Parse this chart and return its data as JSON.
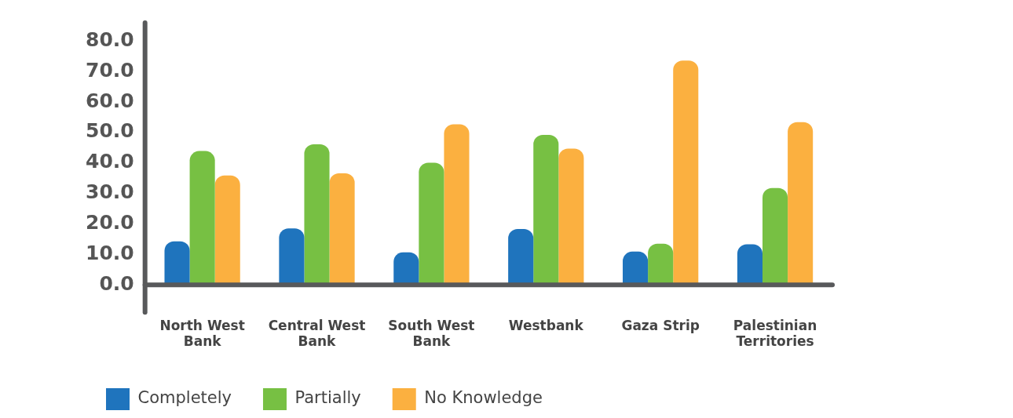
{
  "chart_data": {
    "type": "bar",
    "categories": [
      "North West Bank",
      "Central West Bank",
      "South West Bank",
      "Westbank",
      "Gaza Strip",
      "Palestinian Territories"
    ],
    "series": [
      {
        "name": "Completely",
        "color": "#1f74bd",
        "values": [
          14.3,
          18.5,
          10.7,
          18.3,
          10.9,
          13.3
        ]
      },
      {
        "name": "Partially",
        "color": "#77c043",
        "values": [
          43.9,
          46.1,
          40.1,
          49.2,
          13.5,
          31.8
        ]
      },
      {
        "name": "No Knowledge",
        "color": "#fbb040",
        "values": [
          35.9,
          36.6,
          52.7,
          44.7,
          73.6,
          53.4
        ]
      }
    ],
    "ylim": [
      -9,
      86
    ],
    "yticks": [
      {
        "value": 0,
        "label": "0.0"
      },
      {
        "value": 10,
        "label": "10.0"
      },
      {
        "value": 20,
        "label": "20.0"
      },
      {
        "value": 30,
        "label": "30.0"
      },
      {
        "value": 40,
        "label": "40.0"
      },
      {
        "value": 50,
        "label": "50.0"
      },
      {
        "value": 60,
        "label": "60.0"
      },
      {
        "value": 70,
        "label": "70.0"
      },
      {
        "value": 80,
        "label": "80.0"
      }
    ],
    "grid": false,
    "legend": "bottom"
  }
}
